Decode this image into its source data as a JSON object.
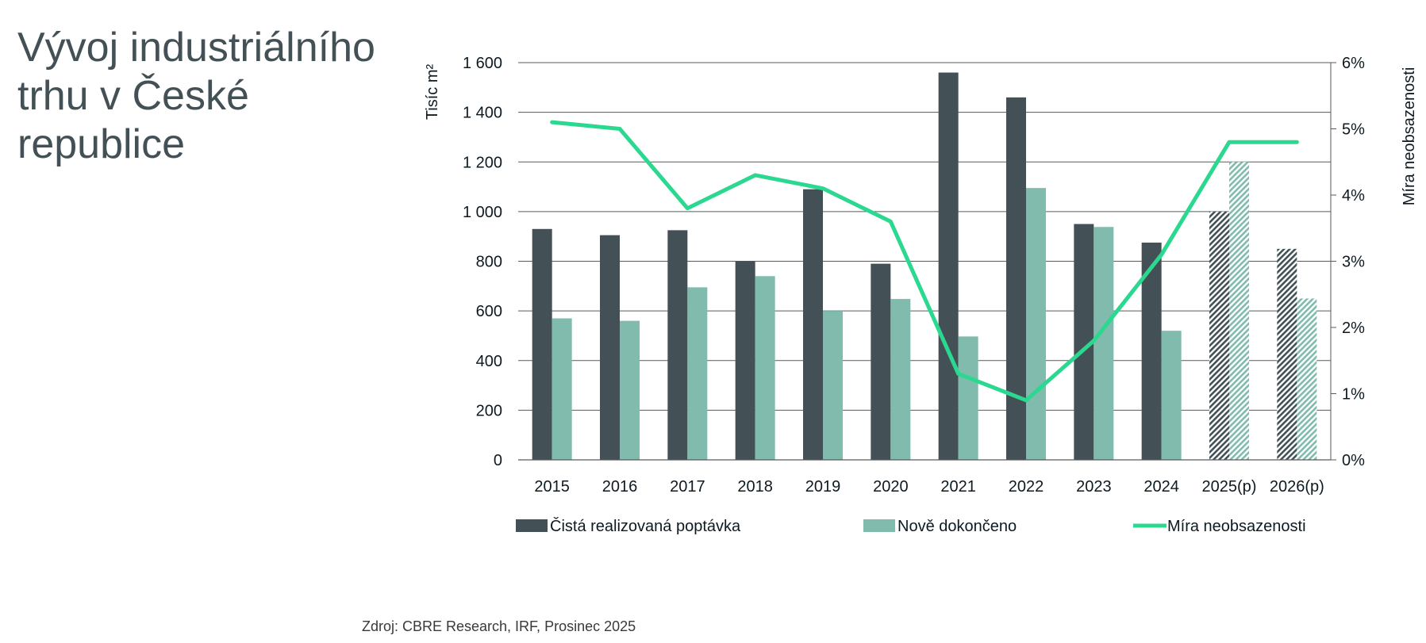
{
  "title": "Vývoj industriálního trhu v České republice",
  "source": "Zdroj: CBRE Research, IRF, Prosinec 2025",
  "colors": {
    "demand": "#435156",
    "completed": "#80bbad",
    "vacancy": "#2bd88f",
    "grid": "#5a5a5a"
  },
  "chart_data": {
    "type": "bar",
    "title": "",
    "categories": [
      "2015",
      "2016",
      "2017",
      "2018",
      "2019",
      "2020",
      "2021",
      "2022",
      "2023",
      "2024",
      "2025(p)",
      "2026(p)"
    ],
    "projected_categories": [
      "2025(p)",
      "2026(p)"
    ],
    "ylabel": "Tisíc m²",
    "y2label": "Míra neobsazenosti",
    "ylim": [
      0,
      1600
    ],
    "y2lim": [
      0,
      6
    ],
    "yticks": [
      0,
      200,
      400,
      600,
      800,
      1000,
      1200,
      1400,
      1600
    ],
    "ytick_labels": [
      "0",
      "200",
      "400",
      "600",
      "800",
      "1 000",
      "1 200",
      "1 400",
      "1 600"
    ],
    "y2ticks": [
      0,
      1,
      2,
      3,
      4,
      5,
      6
    ],
    "y2tick_labels": [
      "0%",
      "1%",
      "2%",
      "3%",
      "4%",
      "5%",
      "6%"
    ],
    "grid": true,
    "legend_position": "bottom",
    "series": [
      {
        "name": "Čistá realizovaná poptávka",
        "kind": "bar",
        "axis": "left",
        "values": [
          930,
          905,
          925,
          800,
          1090,
          790,
          1560,
          1460,
          950,
          875,
          1000,
          850
        ]
      },
      {
        "name": "Nově dokončeno",
        "kind": "bar",
        "axis": "left",
        "values": [
          570,
          560,
          695,
          740,
          600,
          648,
          497,
          1095,
          938,
          520,
          1200,
          650
        ]
      },
      {
        "name": "Míra neobsazenosti",
        "kind": "line",
        "axis": "right",
        "values": [
          5.1,
          5.0,
          3.8,
          4.3,
          4.1,
          3.6,
          1.3,
          0.9,
          1.8,
          3.1,
          4.8,
          4.8
        ]
      }
    ]
  }
}
